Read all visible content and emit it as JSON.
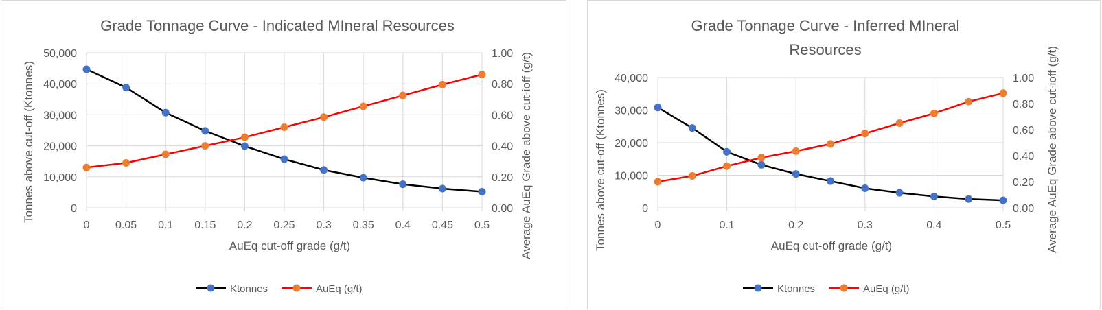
{
  "colors": {
    "ktonnes_line": "#000000",
    "ktonnes_marker": "#4472C4",
    "aueq_line": "#FF0000",
    "aueq_marker": "#ED7D31",
    "grid": "#d9d9d9",
    "text": "#595959"
  },
  "chart_data": [
    {
      "type": "line",
      "title": "Grade Tonnage Curve - Indicated MIneral Resources",
      "xlabel": "AuEq cut-off grade (g/t)",
      "ylabel": "Tonnes above cut-off (Ktonnes)",
      "y2label": "Average AuEq Grade above cut-ioff (g/t)",
      "x": [
        0,
        0.05,
        0.1,
        0.15,
        0.2,
        0.25,
        0.3,
        0.35,
        0.4,
        0.45,
        0.5
      ],
      "x_tick_labels": [
        "0",
        "0.05",
        "0.1",
        "0.15",
        "0.2",
        "0.25",
        "0.3",
        "0.35",
        "0.4",
        "0.45",
        "0.5"
      ],
      "ylim": [
        0,
        50000
      ],
      "y_tick_labels": [
        "0",
        "10,000",
        "20,000",
        "30,000",
        "40,000",
        "50,000"
      ],
      "y2lim": [
        0,
        1.0
      ],
      "y2_tick_labels": [
        "0.00",
        "0.20",
        "0.40",
        "0.60",
        "0.80",
        "1.00"
      ],
      "grid": true,
      "legend_position": "bottom",
      "series": [
        {
          "name": "Ktonnes",
          "axis": "left",
          "values": [
            44700,
            38800,
            30700,
            24800,
            19900,
            15700,
            12200,
            9700,
            7600,
            6200,
            5200
          ]
        },
        {
          "name": "AuEq (g/t)",
          "axis": "right",
          "values": [
            0.26,
            0.29,
            0.345,
            0.4,
            0.455,
            0.52,
            0.585,
            0.655,
            0.725,
            0.795,
            0.86
          ]
        }
      ]
    },
    {
      "type": "line",
      "title": "Grade Tonnage Curve - Inferred MIneral Resources",
      "title_lines": [
        "Grade Tonnage Curve - Inferred MIneral",
        "Resources"
      ],
      "xlabel": "AuEq cut-off grade (g/t)",
      "ylabel": "Tonnes above cut-off (Ktonnes)",
      "y2label": "Average AuEq Grade above cut-ioff (g/t)",
      "x": [
        0,
        0.05,
        0.1,
        0.15,
        0.2,
        0.25,
        0.3,
        0.35,
        0.4,
        0.45,
        0.5
      ],
      "x_ticks": [
        0,
        0.1,
        0.2,
        0.3,
        0.4,
        0.5
      ],
      "x_tick_labels": [
        "0",
        "0.1",
        "0.2",
        "0.3",
        "0.4",
        "0.5"
      ],
      "ylim": [
        0,
        40000
      ],
      "y_tick_labels": [
        "0",
        "10,000",
        "20,000",
        "30,000",
        "40,000"
      ],
      "y2lim": [
        0,
        1.0
      ],
      "y2_tick_labels": [
        "0.00",
        "0.20",
        "0.40",
        "0.60",
        "0.80",
        "1.00"
      ],
      "grid": true,
      "legend_position": "bottom",
      "series": [
        {
          "name": "Ktonnes",
          "axis": "left",
          "values": [
            30800,
            24500,
            17200,
            13200,
            10400,
            8200,
            6000,
            4600,
            3500,
            2700,
            2300
          ]
        },
        {
          "name": "AuEq (g/t)",
          "axis": "right",
          "values": [
            0.2,
            0.245,
            0.32,
            0.385,
            0.435,
            0.49,
            0.57,
            0.65,
            0.725,
            0.815,
            0.88
          ]
        }
      ]
    }
  ]
}
